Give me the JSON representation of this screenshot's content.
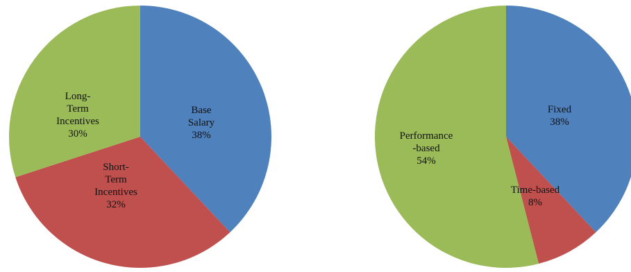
{
  "chart_data": [
    {
      "type": "pie",
      "slices": [
        {
          "lines": [
            "Base",
            "Salary",
            "38%"
          ],
          "value": 38,
          "color": "#4F81BD"
        },
        {
          "lines": [
            "Short-",
            "Term",
            "Incentives",
            "32%"
          ],
          "value": 32,
          "color": "#C0504D"
        },
        {
          "lines": [
            "Long-",
            "Term",
            "Incentives",
            "30%"
          ],
          "value": 30,
          "color": "#9BBB59"
        }
      ]
    },
    {
      "type": "pie",
      "slices": [
        {
          "lines": [
            "Fixed",
            "38%"
          ],
          "value": 38,
          "color": "#4F81BD"
        },
        {
          "lines": [
            "Time-based",
            "8%"
          ],
          "value": 8,
          "color": "#C0504D"
        },
        {
          "lines": [
            "Performance",
            "-based",
            "54%"
          ],
          "value": 54,
          "color": "#9BBB59"
        }
      ]
    }
  ]
}
